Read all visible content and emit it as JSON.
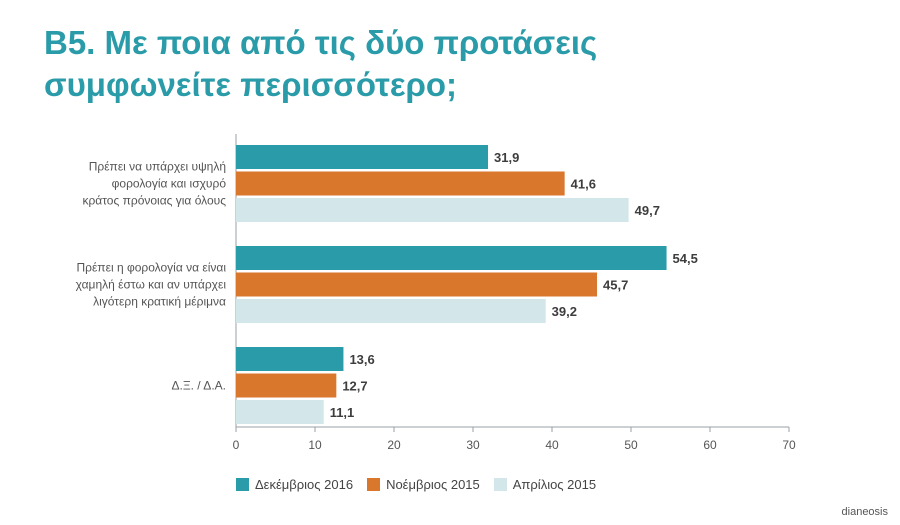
{
  "title_line1": "Β5. Με ποια από τις δύο προτάσεις",
  "title_line2": "συμφωνείτε περισσότερο;",
  "credit": "dianeosis",
  "colors": {
    "title": "#2a9ba8",
    "series": [
      "#2a9ba8",
      "#d9772c",
      "#d3e6ea"
    ],
    "axis": "#9aa0a6",
    "label": "#555555",
    "value": "#3d3d3d"
  },
  "chart_data": {
    "type": "bar",
    "orientation": "horizontal",
    "title": "Β5. Με ποια από τις δύο προτάσεις συμφωνείτε περισσότερο;",
    "categories": [
      [
        "Πρέπει να υπάρχει υψηλή",
        "φορολογία και ισχυρό",
        "κράτος πρόνοιας για όλους"
      ],
      [
        "Πρέπει η φορολογία να είναι",
        "χαμηλή έστω και αν υπάρχει",
        "λιγότερη κρατική μέριμνα"
      ],
      [
        "Δ.Ξ. / Δ.Α."
      ]
    ],
    "series": [
      {
        "name": "Δεκέμβριος 2016",
        "values": [
          31.9,
          54.5,
          13.6
        ],
        "labels": [
          "31,9",
          "54,5",
          "13,6"
        ]
      },
      {
        "name": "Νοέμβριος 2015",
        "values": [
          41.6,
          45.7,
          12.7
        ],
        "labels": [
          "41,6",
          "45,7",
          "12,7"
        ]
      },
      {
        "name": "Απρίλιος 2015",
        "values": [
          49.7,
          39.2,
          11.1
        ],
        "labels": [
          "49,7",
          "39,2",
          "11,1"
        ]
      }
    ],
    "xlim": [
      0,
      70
    ],
    "xticks": [
      0,
      10,
      20,
      30,
      40,
      50,
      60,
      70
    ],
    "legend_position": "bottom"
  }
}
